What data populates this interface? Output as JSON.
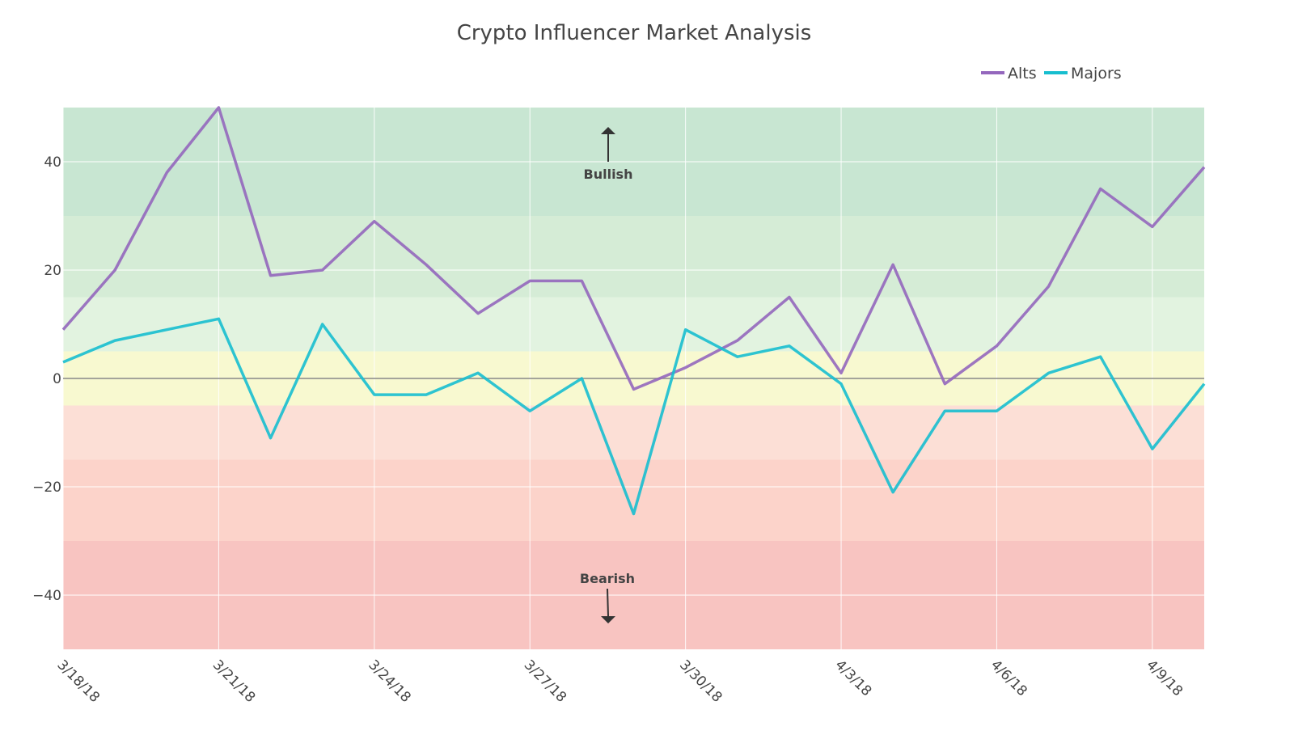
{
  "chart_data": {
    "type": "line",
    "title": "Crypto Influencer Market Analysis",
    "xlabel": "",
    "ylabel": "",
    "ylim": [
      -50,
      50
    ],
    "y_ticks": [
      -40,
      -20,
      0,
      20,
      40
    ],
    "x_tick_labels": [
      "3/18/18",
      "3/21/18",
      "3/24/18",
      "3/27/18",
      "3/30/18",
      "4/3/18",
      "4/6/18",
      "4/9/18"
    ],
    "x_tick_every": 3,
    "grid": true,
    "legend_position": "top-right",
    "series": [
      {
        "name": "Alts",
        "color": "#9467bd",
        "values": [
          9,
          20,
          38,
          50,
          19,
          20,
          29,
          21,
          12,
          18,
          18,
          -2,
          2,
          7,
          15,
          1,
          21,
          -1,
          6,
          17,
          35,
          28,
          39
        ]
      },
      {
        "name": "Majors",
        "color": "#17becf",
        "values": [
          3,
          7,
          9,
          11,
          -11,
          10,
          -3,
          -3,
          1,
          -6,
          0,
          -25,
          9,
          4,
          6,
          -1,
          -21,
          -6,
          -6,
          1,
          4,
          -13,
          -1
        ]
      }
    ],
    "bands": [
      {
        "from": 30,
        "to": 50,
        "color": "#c8e6d2"
      },
      {
        "from": 15,
        "to": 30,
        "color": "#d5ecd6"
      },
      {
        "from": 5,
        "to": 15,
        "color": "#e2f3e0"
      },
      {
        "from": -5,
        "to": 5,
        "color": "#f8f9d0"
      },
      {
        "from": -15,
        "to": -5,
        "color": "#fcdfd6"
      },
      {
        "from": -30,
        "to": -15,
        "color": "#fcd3ca"
      },
      {
        "from": -50,
        "to": -30,
        "color": "#f8c4c1"
      }
    ],
    "annotations": [
      {
        "text": "Bullish",
        "arrow": "up"
      },
      {
        "text": "Bearish",
        "arrow": "down"
      }
    ]
  }
}
